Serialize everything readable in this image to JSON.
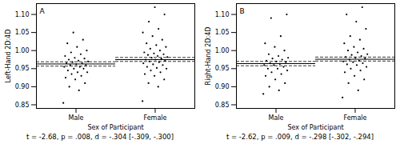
{
  "chart_data": [
    {
      "type": "scatter",
      "title": "A",
      "xlabel": "Sex of Participant",
      "ylabel": "Left-Hand 2D:4D",
      "caption": "t = -2.68, p = .008, d = -.304 [-.309, -.300]",
      "categories": [
        "Male",
        "Female"
      ],
      "values": [
        [
          0.855,
          0.89,
          0.9,
          0.91,
          0.92,
          0.925,
          0.93,
          0.935,
          0.94,
          0.94,
          0.945,
          0.95,
          0.95,
          0.955,
          0.955,
          0.96,
          0.96,
          0.962,
          0.965,
          0.965,
          0.968,
          0.97,
          0.972,
          0.975,
          0.978,
          0.98,
          0.985,
          0.99,
          0.995,
          1.0,
          1.01,
          1.02,
          1.03,
          1.05
        ],
        [
          0.86,
          0.9,
          0.91,
          0.92,
          0.93,
          0.935,
          0.94,
          0.945,
          0.95,
          0.952,
          0.955,
          0.96,
          0.962,
          0.965,
          0.968,
          0.97,
          0.972,
          0.975,
          0.975,
          0.978,
          0.98,
          0.982,
          0.985,
          0.988,
          0.99,
          0.992,
          0.995,
          1.0,
          1.005,
          1.01,
          1.015,
          1.02,
          1.03,
          1.04,
          1.05,
          1.06,
          1.08,
          1.1,
          1.12
        ]
      ],
      "means": [
        0.963,
        0.975
      ],
      "ci_lower": [
        0.957,
        0.97
      ],
      "ci_upper": [
        0.969,
        0.981
      ],
      "color": "#000000",
      "ylim": [
        0.84,
        1.13
      ],
      "yticks": [
        {
          "value": 0.85,
          "label": "0.85"
        },
        {
          "value": 0.9,
          "label": "0.90"
        },
        {
          "value": 0.95,
          "label": "0.95"
        },
        {
          "value": 1.0,
          "label": "1.00"
        },
        {
          "value": 1.05,
          "label": "1.05"
        },
        {
          "value": 1.1,
          "label": "1.10"
        }
      ],
      "grid": false
    },
    {
      "type": "scatter",
      "title": "B",
      "xlabel": "Sex of Participant",
      "ylabel": "Right-Hand 2D:4D",
      "caption": "t = -2.62, p = .009, d = -.298 [-.302, -.294]",
      "categories": [
        "Male",
        "Female"
      ],
      "values": [
        [
          0.88,
          0.89,
          0.9,
          0.91,
          0.92,
          0.93,
          0.935,
          0.94,
          0.945,
          0.95,
          0.95,
          0.955,
          0.96,
          0.96,
          0.963,
          0.965,
          0.968,
          0.97,
          0.972,
          0.975,
          0.978,
          0.98,
          0.985,
          0.99,
          1.0,
          1.01,
          1.02,
          1.04,
          1.09,
          1.1
        ],
        [
          0.87,
          0.89,
          0.91,
          0.92,
          0.93,
          0.94,
          0.945,
          0.95,
          0.955,
          0.96,
          0.962,
          0.965,
          0.968,
          0.97,
          0.972,
          0.975,
          0.978,
          0.98,
          0.982,
          0.985,
          0.988,
          0.99,
          0.995,
          1.0,
          1.005,
          1.01,
          1.02,
          1.03,
          1.04,
          1.06,
          1.08,
          1.1,
          1.12
        ]
      ],
      "means": [
        0.964,
        0.976
      ],
      "ci_lower": [
        0.958,
        0.971
      ],
      "ci_upper": [
        0.97,
        0.982
      ],
      "color": "#000000",
      "ylim": [
        0.84,
        1.13
      ],
      "yticks": [
        {
          "value": 0.85,
          "label": "0.85"
        },
        {
          "value": 0.9,
          "label": "0.90"
        },
        {
          "value": 0.95,
          "label": "0.95"
        },
        {
          "value": 1.0,
          "label": "1.00"
        },
        {
          "value": 1.05,
          "label": "1.05"
        },
        {
          "value": 1.1,
          "label": "1.10"
        }
      ],
      "grid": false
    }
  ]
}
